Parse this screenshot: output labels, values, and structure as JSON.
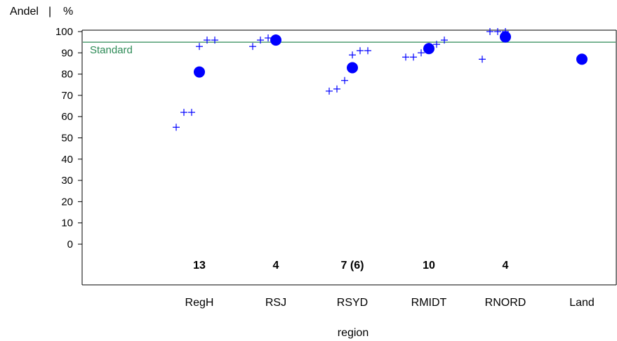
{
  "chart_data": {
    "type": "scatter",
    "ylabel": "Andel",
    "yunit": "%",
    "ylabel_separator": "|",
    "xlabel": "region",
    "ylim": [
      0,
      100
    ],
    "yticks": [
      0,
      10,
      20,
      30,
      40,
      50,
      60,
      70,
      80,
      90,
      100
    ],
    "grid": false,
    "categories": [
      "RegH",
      "RSJ",
      "RSYD",
      "RMIDT",
      "RNORD",
      "Land"
    ],
    "counts": [
      "13",
      "4",
      "7  (6)",
      "10",
      "4",
      ""
    ],
    "reference_line": {
      "label": "Standard",
      "value": 95,
      "color": "#2e8b57"
    },
    "colors": {
      "marker": "#0000ff",
      "axis": "#000000"
    },
    "series": [
      {
        "marker": "plus",
        "points": [
          {
            "category": "RegH",
            "values": [
              55,
              62,
              62,
              93,
              96,
              96
            ]
          },
          {
            "category": "RSJ",
            "values": [
              93,
              96,
              97,
              97
            ]
          },
          {
            "category": "RSYD",
            "values": [
              72,
              73,
              77,
              89,
              91,
              91
            ]
          },
          {
            "category": "RMIDT",
            "values": [
              88,
              88,
              90,
              93,
              94,
              96
            ]
          },
          {
            "category": "RNORD",
            "values": [
              87,
              100,
              100,
              100
            ]
          }
        ]
      },
      {
        "marker": "dot",
        "values": [
          81,
          96,
          83,
          92,
          97.5,
          87
        ]
      }
    ]
  }
}
